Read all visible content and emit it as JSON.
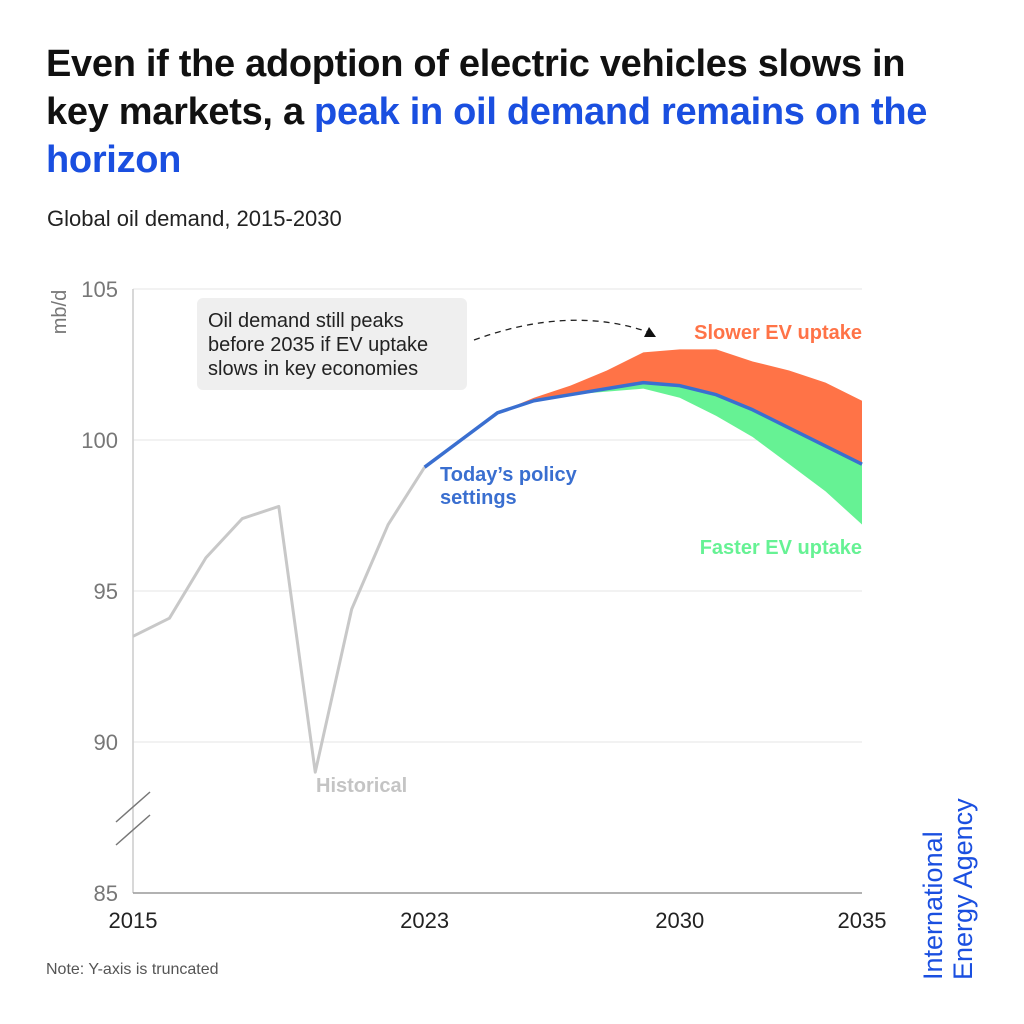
{
  "title": {
    "part1": "Even if the adoption of electric vehicles slows in key markets, a ",
    "highlight": "peak in oil demand remains on the horizon"
  },
  "subtitle": "Global oil demand, 2015-2030",
  "note": "Note: Y-axis is truncated",
  "logo": {
    "line1": "International",
    "line2": "Energy Agency"
  },
  "colors": {
    "historical": "#c8c8c8",
    "policy": "#3a6fd0",
    "slower": "#ff7347",
    "faster": "#66f294",
    "accent": "#1a4fe0"
  },
  "chart_data": {
    "type": "line",
    "title": "Global oil demand, 2015-2030",
    "ylabel": "mb/d",
    "xlabel": "",
    "xlim": [
      2015,
      2035
    ],
    "ylim": [
      85,
      105
    ],
    "x_ticks": [
      "2015",
      "2023",
      "2030",
      "2035"
    ],
    "y_ticks": [
      "85",
      "90",
      "95",
      "100",
      "105"
    ],
    "grid": true,
    "series": [
      {
        "name": "Historical",
        "x": [
          2015,
          2016,
          2017,
          2018,
          2019,
          2020,
          2021,
          2022,
          2023
        ],
        "values": [
          93.5,
          94.1,
          96.1,
          97.4,
          97.8,
          89.0,
          94.4,
          97.2,
          99.1
        ]
      },
      {
        "name": "Today's policy settings",
        "x": [
          2023,
          2024,
          2025,
          2026,
          2027,
          2028,
          2029,
          2030,
          2031,
          2032,
          2033,
          2034,
          2035
        ],
        "values": [
          99.1,
          100.0,
          100.9,
          101.3,
          101.5,
          101.7,
          101.9,
          101.8,
          101.5,
          101.0,
          100.4,
          99.8,
          99.2
        ]
      },
      {
        "name": "Slower EV uptake",
        "x": [
          2025,
          2026,
          2027,
          2028,
          2029,
          2030,
          2031,
          2032,
          2033,
          2034,
          2035
        ],
        "values": [
          100.9,
          101.4,
          101.8,
          102.3,
          102.9,
          103.0,
          103.0,
          102.6,
          102.3,
          101.9,
          101.3
        ]
      },
      {
        "name": "Faster EV uptake",
        "x": [
          2025,
          2026,
          2027,
          2028,
          2029,
          2030,
          2031,
          2032,
          2033,
          2034,
          2035
        ],
        "values": [
          100.9,
          101.3,
          101.5,
          101.6,
          101.7,
          101.4,
          100.8,
          100.1,
          99.2,
          98.3,
          97.2
        ]
      }
    ],
    "annotations": [
      "Oil demand still peaks",
      "before 2035 if EV uptake",
      "slows in key economies"
    ],
    "labels": {
      "historical": "Historical",
      "policy_line1": "Today’s policy",
      "policy_line2": "settings",
      "slower": "Slower EV uptake",
      "faster": "Faster EV uptake"
    }
  }
}
